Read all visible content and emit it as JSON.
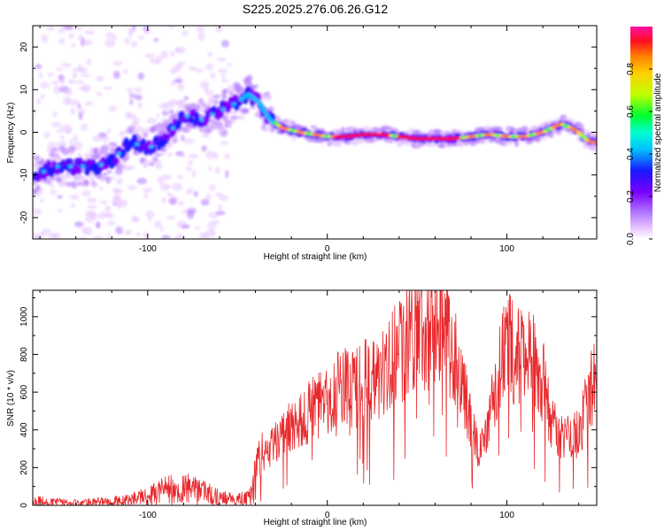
{
  "title": "S225.2025.276.06.26.G12",
  "colors": {
    "snr_line": "#e8282b",
    "axis": "#000000",
    "colormap": [
      "#ffffff",
      "#e8c6ff",
      "#b47cff",
      "#7a00ff",
      "#1a16ff",
      "#00bfff",
      "#00ffd0",
      "#00ff30",
      "#bfff00",
      "#ffd000",
      "#ff8000",
      "#ff1020",
      "#ff10a0"
    ]
  },
  "chart_data": [
    {
      "type": "heatmap",
      "name": "spectrogram",
      "title": "S225.2025.276.06.26.G12",
      "xlabel": "Height of straight line (km)",
      "ylabel": "Frequency (Hz)",
      "xlim": [
        -164,
        150
      ],
      "ylim": [
        -25,
        25
      ],
      "xticks_major": [
        -100,
        0,
        100
      ],
      "yticks_major": [
        -20,
        -10,
        0,
        10,
        20
      ],
      "ridge": {
        "x": [
          -164,
          -150,
          -140,
          -130,
          -120,
          -110,
          -100,
          -90,
          -80,
          -70,
          -60,
          -50,
          -44,
          -38,
          -32,
          -25,
          -15,
          0,
          10,
          20,
          30,
          40,
          50,
          60,
          70,
          80,
          90,
          100,
          110,
          120,
          130,
          136,
          140,
          145,
          150
        ],
        "y": [
          -10,
          -8,
          -8,
          -8,
          -7,
          -2,
          -4,
          -1,
          4,
          3,
          5,
          7,
          9,
          7,
          3,
          1,
          0,
          -1,
          -1,
          -0.5,
          -0.5,
          -1,
          -1.5,
          -1.5,
          -1.5,
          -1,
          -0.5,
          -1,
          -1,
          0,
          2,
          1,
          0,
          -2,
          -2.5
        ]
      },
      "colorbar": {
        "label": "Normalized spectral amplitude",
        "range": [
          0,
          1
        ],
        "ticks": [
          "0.0",
          "0.2",
          "0.4",
          "0.6",
          "0.8"
        ]
      }
    },
    {
      "type": "line",
      "name": "snr",
      "xlabel": "Height of straight line (km)",
      "ylabel": "SNR (10 * v/v)",
      "xlim": [
        -164,
        150
      ],
      "ylim": [
        0,
        1140
      ],
      "xticks_major": [
        -100,
        0,
        100
      ],
      "yticks_major": [
        0,
        200,
        400,
        600,
        800,
        1000
      ],
      "series": [
        {
          "name": "SNR",
          "x": [
            -164,
            -150,
            -140,
            -130,
            -120,
            -110,
            -100,
            -90,
            -80,
            -70,
            -60,
            -50,
            -44,
            -38,
            -34,
            -30,
            -25,
            -20,
            -15,
            -10,
            -5,
            0,
            5,
            10,
            15,
            20,
            25,
            30,
            35,
            40,
            45,
            50,
            55,
            60,
            65,
            70,
            75,
            80,
            85,
            90,
            95,
            100,
            105,
            110,
            115,
            120,
            125,
            130,
            135,
            140,
            145,
            150
          ],
          "values": [
            25,
            15,
            12,
            18,
            20,
            30,
            50,
            80,
            90,
            70,
            40,
            30,
            40,
            180,
            260,
            330,
            390,
            420,
            450,
            500,
            520,
            560,
            600,
            640,
            620,
            650,
            680,
            700,
            760,
            820,
            880,
            980,
            920,
            980,
            950,
            820,
            650,
            420,
            280,
            420,
            700,
            860,
            800,
            780,
            790,
            660,
            440,
            380,
            370,
            380,
            560,
            700
          ]
        }
      ]
    }
  ]
}
